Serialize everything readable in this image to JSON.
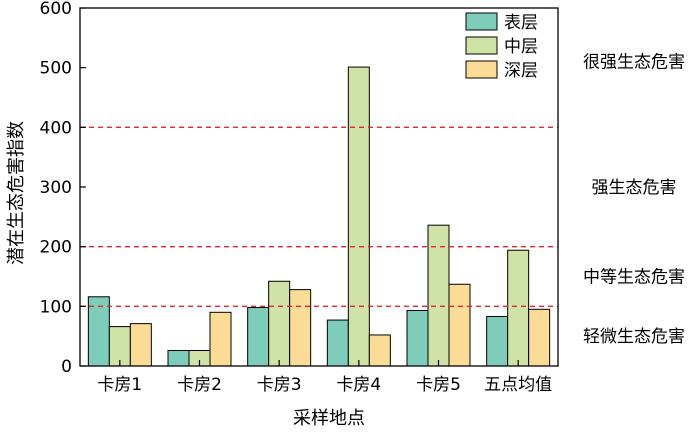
{
  "chart_data": {
    "type": "bar",
    "categories": [
      "卡房1",
      "卡房2",
      "卡房3",
      "卡房4",
      "卡房5",
      "五点均值"
    ],
    "series": [
      {
        "name": "表层",
        "color": "#7ecdbb",
        "values": [
          116,
          26,
          98,
          77,
          93,
          83
        ]
      },
      {
        "name": "中层",
        "color": "#cfe3a6",
        "values": [
          66,
          26,
          142,
          501,
          236,
          194
        ]
      },
      {
        "name": "深层",
        "color": "#fbdc97",
        "values": [
          71,
          90,
          128,
          52,
          137,
          95
        ]
      }
    ],
    "xlabel": "采样地点",
    "ylabel": "潜在生态危害指数",
    "ylim": [
      0,
      600
    ],
    "yticks": [
      0,
      100,
      200,
      300,
      400,
      500,
      600
    ],
    "grid": false,
    "legend_position": "top-right",
    "thresholds": [
      {
        "value": 100,
        "color": "#e8262a"
      },
      {
        "value": 200,
        "color": "#e8262a"
      },
      {
        "value": 400,
        "color": "#e8262a"
      }
    ],
    "risk_levels": [
      {
        "label": "轻微生态危害",
        "center": 50
      },
      {
        "label": "中等生态危害",
        "center": 150
      },
      {
        "label": "强生态危害",
        "center": 300
      },
      {
        "label": "很强生态危害",
        "center": 510
      }
    ]
  }
}
